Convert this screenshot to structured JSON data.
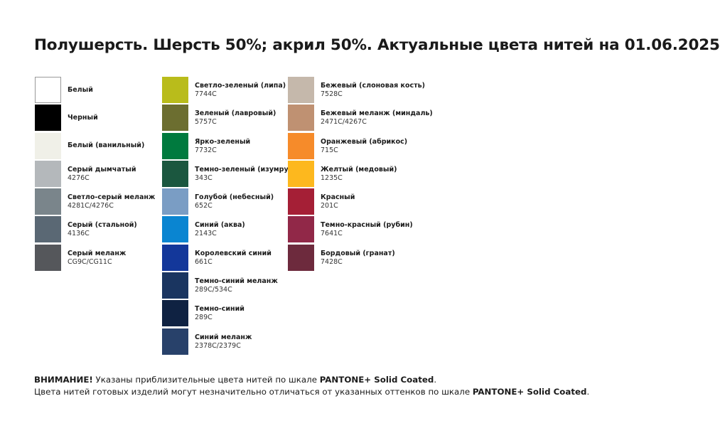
{
  "title": "Полушерсть. Шерсть 50%; акрил 50%. Актуальные цвета нитей на 01.06.2025",
  "columns": [
    [
      {
        "name": "Белый",
        "code": "",
        "color": "#ffffff"
      },
      {
        "name": "Черный",
        "code": "",
        "color": "#000000"
      },
      {
        "name": "Белый (ванильный)",
        "code": "",
        "color": "#f0f0e8"
      },
      {
        "name": "Серый дымчатый",
        "code": "4276C",
        "color": "#b4b8bb"
      },
      {
        "name": "Светло-серый меланж",
        "code": "4281C/4276C",
        "color": "#7a858b"
      },
      {
        "name": "Серый (стальной)",
        "code": "4136C",
        "color": "#5a6874"
      },
      {
        "name": "Серый меланж",
        "code": "CG9C/CG11C",
        "color": "#55575b"
      }
    ],
    [
      {
        "name": "Светло-зеленый (липа)",
        "code": "7744C",
        "color": "#b9bc1b"
      },
      {
        "name": "Зеленый (лавровый)",
        "code": "5757C",
        "color": "#6c6e30"
      },
      {
        "name": "Ярко-зеленый",
        "code": "7732C",
        "color": "#007a3e"
      },
      {
        "name": "Темно-зеленый (изумруд)",
        "code": "343C",
        "color": "#1b573f"
      },
      {
        "name": "Голубой (небесный)",
        "code": "652C",
        "color": "#7a9dc4"
      },
      {
        "name": "Синий (аква)",
        "code": "2143C",
        "color": "#0a85d1"
      },
      {
        "name": "Королевский синий",
        "code": "661C",
        "color": "#13379a"
      },
      {
        "name": "Темно-синий меланж",
        "code": "289C/534C",
        "color": "#1a3560"
      },
      {
        "name": "Темно-синий",
        "code": "289C",
        "color": "#0f2242"
      },
      {
        "name": "Синий меланж",
        "code": "2378C/2379C",
        "color": "#28416a"
      }
    ],
    [
      {
        "name": "Бежевый (слоновая кость)",
        "code": "7528C",
        "color": "#c5b8ab"
      },
      {
        "name": "Бежевый меланж (миндаль)",
        "code": "2471C/4267C",
        "color": "#bf9172"
      },
      {
        "name": "Оранжевый (абрикос)",
        "code": "715C",
        "color": "#f68b2a"
      },
      {
        "name": "Желтый (медовый)",
        "code": "1235C",
        "color": "#fdb81e"
      },
      {
        "name": "Красный",
        "code": "201C",
        "color": "#a51f36"
      },
      {
        "name": "Темно-красный (рубин)",
        "code": "7641C",
        "color": "#912848"
      },
      {
        "name": "Бордовый (гранат)",
        "code": "7428C",
        "color": "#6d2a3d"
      }
    ]
  ],
  "footer": {
    "line1_bold": "ВНИМАНИЕ!",
    "line1_text": " Указаны приблизительные цвета нитей по шкале ",
    "line1_scale": "PANTONE+ Solid Coated",
    "line1_end": ".",
    "line2_text": "Цвета нитей готовых изделий могут незначительно отличаться от указанных оттенков по шкале ",
    "line2_scale": "PANTONE+ Solid Coated",
    "line2_end": "."
  }
}
